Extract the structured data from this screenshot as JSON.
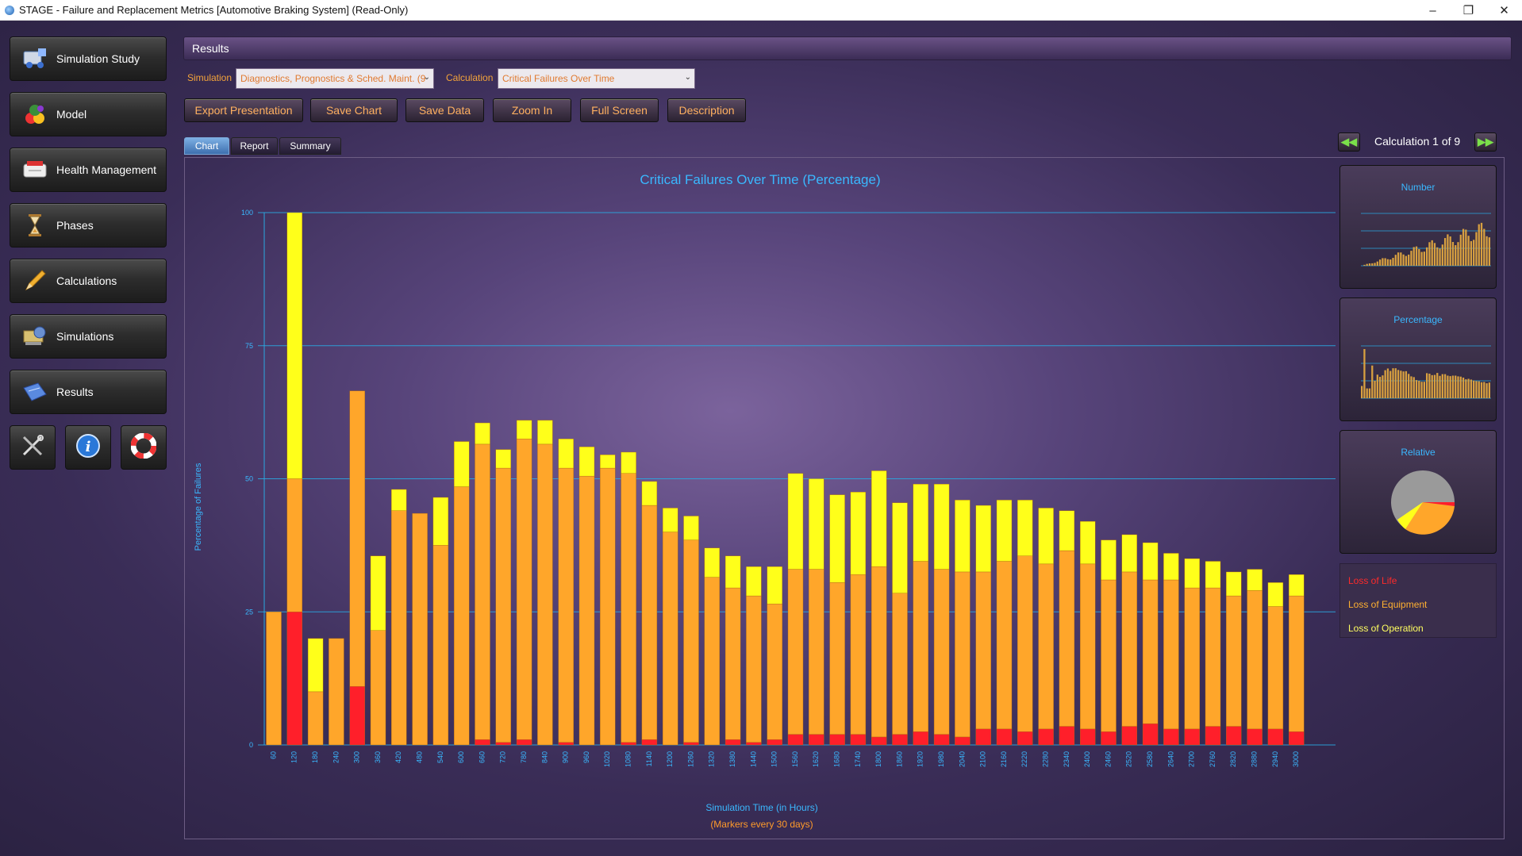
{
  "window": {
    "title": "STAGE - Failure and Replacement Metrics [Automotive Braking System] (Read-Only)",
    "controls": [
      "–",
      "❐",
      "✕"
    ]
  },
  "sidebar": {
    "items": [
      {
        "label": "Simulation Study",
        "icon": "simulation-study-icon"
      },
      {
        "label": "Model",
        "icon": "model-icon"
      },
      {
        "label": "Health Management",
        "icon": "health-management-icon"
      },
      {
        "label": "Phases",
        "icon": "hourglass-icon"
      },
      {
        "label": "Calculations",
        "icon": "pencil-icon"
      },
      {
        "label": "Simulations",
        "icon": "simulations-icon"
      },
      {
        "label": "Results",
        "icon": "results-icon"
      }
    ],
    "tools": [
      "tools-icon",
      "info-icon",
      "lifebuoy-icon"
    ]
  },
  "header": {
    "title": "Results"
  },
  "selectors": {
    "simulation_label": "Simulation",
    "simulation_value": "Diagnostics, Prognostics & Sched. Maint. (9",
    "calculation_label": "Calculation",
    "calculation_value": "Critical Failures Over Time"
  },
  "actions": [
    "Export Presentation",
    "Save Chart",
    "Save Data",
    "Zoom In",
    "Full Screen",
    "Description"
  ],
  "tabs": [
    {
      "label": "Chart",
      "active": true
    },
    {
      "label": "Report",
      "active": false
    },
    {
      "label": "Summary",
      "active": false
    }
  ],
  "pager": {
    "text": "Calculation 1 of 9",
    "prev": "◀◀",
    "next": "▶▶"
  },
  "thumbnails": [
    {
      "title": "Number"
    },
    {
      "title": "Percentage"
    },
    {
      "title": "Relative"
    }
  ],
  "legend": [
    {
      "label": "Loss of Life",
      "color": "#ff2a2a"
    },
    {
      "label": "Loss of Equipment",
      "color": "#ffb030"
    },
    {
      "label": "Loss of Operation",
      "color": "#ffff20"
    }
  ],
  "colors": {
    "life": "#ff1f2a",
    "equipment": "#ffa62a",
    "operation": "#ffff1a",
    "accent": "#3ab8ff",
    "orange_text": "#ff9a2a"
  },
  "chart_data": {
    "type": "bar",
    "stacked": true,
    "title": "Critical Failures Over Time (Percentage)",
    "xlabel": "Simulation Time (in Hours)",
    "xsubtitle": "(Markers every 30 days)",
    "ylabel": "Percentage of Failures",
    "ylim": [
      0,
      100
    ],
    "yticks": [
      0,
      25,
      50,
      75,
      100
    ],
    "grid": true,
    "categories": [
      "60",
      "120",
      "180",
      "240",
      "300",
      "360",
      "420",
      "480",
      "540",
      "600",
      "660",
      "720",
      "780",
      "840",
      "900",
      "960",
      "1020",
      "1080",
      "1140",
      "1200",
      "1260",
      "1320",
      "1380",
      "1440",
      "1500",
      "1560",
      "1620",
      "1680",
      "1740",
      "1800",
      "1860",
      "1920",
      "1980",
      "2040",
      "2100",
      "2160",
      "2220",
      "2280",
      "2340",
      "2400",
      "2460",
      "2520",
      "2580",
      "2640",
      "2700",
      "2760",
      "2820",
      "2880",
      "2940",
      "3000"
    ],
    "series": [
      {
        "name": "Loss of Life",
        "values": [
          0,
          25,
          0,
          0,
          11,
          0,
          0,
          0,
          0,
          0,
          1,
          0.5,
          1,
          0,
          0.5,
          0,
          0,
          0.5,
          1,
          0,
          0.5,
          0,
          1,
          0.5,
          1,
          2,
          2,
          2,
          2,
          1.5,
          2,
          2.5,
          2,
          1.5,
          3,
          3,
          2.5,
          3,
          3.5,
          3,
          2.5,
          3.5,
          4,
          3,
          3,
          3.5,
          3.5,
          3,
          3,
          2.5
        ]
      },
      {
        "name": "Loss of Equipment",
        "values": [
          25,
          25,
          10,
          20,
          55.5,
          21.5,
          44,
          43.5,
          37.5,
          48.5,
          55.5,
          51.5,
          56.5,
          56.5,
          51.5,
          50.5,
          52,
          50.5,
          44,
          40,
          38,
          31.5,
          28.5,
          27.5,
          25.5,
          31,
          31,
          28.5,
          30,
          32,
          26.5,
          32,
          31,
          31,
          29.5,
          31.5,
          33,
          31,
          33,
          31,
          28.5,
          29,
          27,
          28,
          26.5,
          26,
          24.5,
          26,
          23,
          25.5
        ]
      },
      {
        "name": "Loss of Operation",
        "values": [
          0,
          50,
          10,
          0,
          0,
          14,
          4,
          0,
          9,
          8.5,
          4,
          3.5,
          3.5,
          4.5,
          5.5,
          5.5,
          2.5,
          4,
          4.5,
          4.5,
          4.5,
          5.5,
          6,
          5.5,
          7,
          18,
          17,
          16.5,
          15.5,
          18,
          17,
          14.5,
          16,
          13.5,
          12.5,
          11.5,
          10.5,
          10.5,
          7.5,
          8,
          7.5,
          7,
          7,
          5,
          5.5,
          5,
          4.5,
          4,
          4.5,
          4
        ]
      }
    ]
  }
}
